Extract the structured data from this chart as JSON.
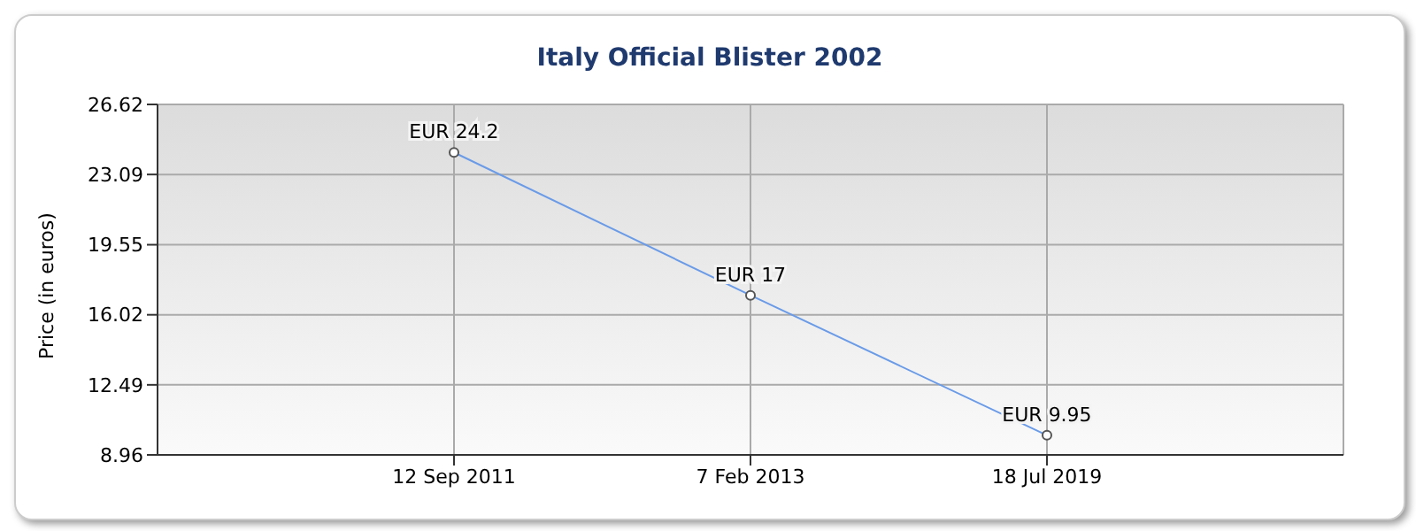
{
  "chart_data": {
    "type": "line",
    "title": "Italy Official Blister 2002",
    "ylabel": "Price (in euros)",
    "categories": [
      "12 Sep 2011",
      "7 Feb 2013",
      "18 Jul 2019"
    ],
    "values": [
      24.2,
      17,
      9.95
    ],
    "value_labels": [
      "EUR 24.2",
      "EUR 17",
      "EUR 9.95"
    ],
    "color": "#6a9be8",
    "ylim": [
      8.96,
      26.62
    ],
    "yticks": [
      8.96,
      12.49,
      16.02,
      19.55,
      23.09,
      26.62
    ],
    "grid": true,
    "marker": "circle",
    "line_style": "solid"
  }
}
